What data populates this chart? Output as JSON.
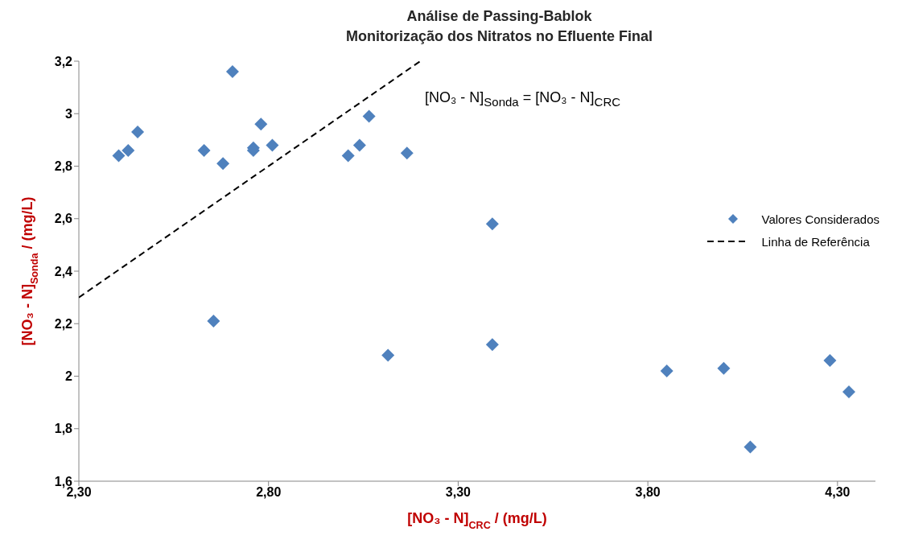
{
  "chart_data": {
    "type": "scatter",
    "title": "Análise de Passing-Bablok",
    "subtitle": "Monitorização dos Nitratos no Efluente Final",
    "xlabel": "[NO₃ - N]$_{CRC}$ / (mg/L)",
    "ylabel": "[NO₃ - N]$_{Sonda}$ / (mg/L)",
    "annotations": [
      "[NO₃ - N]$_{Sonda}$ = [NO₃ - N]$_{CRC}$"
    ],
    "xlim": [
      2.3,
      4.4
    ],
    "xticks": [
      {
        "value": 2.3,
        "label": "2,30"
      },
      {
        "value": 2.8,
        "label": "2,80"
      },
      {
        "value": 3.3,
        "label": "3,30"
      },
      {
        "value": 3.8,
        "label": "3,80"
      },
      {
        "value": 4.3,
        "label": "4,30"
      }
    ],
    "ylim": [
      1.6,
      3.2
    ],
    "yticks": [
      {
        "value": 1.6,
        "label": "1,6"
      },
      {
        "value": 1.8,
        "label": "1,8"
      },
      2,
      {
        "value": 2.2,
        "label": "2,2"
      },
      {
        "value": 2.4,
        "label": "2,4"
      },
      {
        "value": 2.6,
        "label": "2,6"
      },
      {
        "value": 2.8,
        "label": "2,8"
      },
      3,
      {
        "value": 3.2,
        "label": "3,2"
      }
    ],
    "grid": false,
    "legend": "right",
    "series": [
      {
        "name": "Valores Considerados",
        "marker": "diamond",
        "color": "#4f81bd",
        "x": [
          2.405,
          2.43,
          2.455,
          2.63,
          2.655,
          2.68,
          2.705,
          2.76,
          2.76,
          2.78,
          2.81,
          3.01,
          3.04,
          3.065,
          3.115,
          3.165,
          3.39,
          3.39,
          3.85,
          4.0,
          4.07,
          4.28,
          4.33
        ],
        "values": [
          2.84,
          2.86,
          2.93,
          2.86,
          2.21,
          2.81,
          3.16,
          2.87,
          2.86,
          2.96,
          2.88,
          2.84,
          2.88,
          2.99,
          2.08,
          2.85,
          2.58,
          2.12,
          2.02,
          2.03,
          1.73,
          2.06,
          1.94
        ]
      },
      {
        "name": "Linha de Referência",
        "type": "line",
        "marker": "none",
        "line_style": "dashed",
        "color": "#000000",
        "x": [
          2.3,
          3.2
        ],
        "values": [
          2.3,
          3.2
        ]
      }
    ]
  }
}
